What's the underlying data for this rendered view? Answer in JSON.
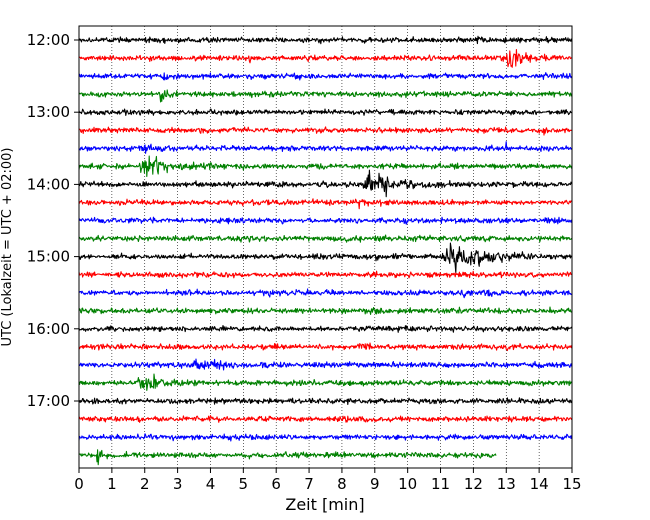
{
  "chart_data": {
    "type": "line",
    "subtype": "helicorder",
    "title": "",
    "xlabel": "Zeit  [min]",
    "ylabel": "UTC (Lokalzeit = UTC + 02:00)",
    "xlim": [
      0,
      15
    ],
    "x_ticks": [
      "0",
      "1",
      "2",
      "3",
      "4",
      "5",
      "6",
      "7",
      "8",
      "9",
      "10",
      "11",
      "12",
      "13",
      "14",
      "15"
    ],
    "y_ticks": [
      "12:00",
      "13:00",
      "14:00",
      "15:00",
      "16:00",
      "17:00"
    ],
    "grid": "vertical dotted",
    "trace_interval_min": 15,
    "trace_colors": [
      "#000000",
      "#ff0000",
      "#0000ff",
      "#008000"
    ],
    "rows": [
      {
        "start": "12:00",
        "color": "#000000",
        "end_min": 15,
        "events": [
          {
            "t": 12.1,
            "amp": 0.5,
            "dur": 0.15
          },
          {
            "t": 12.9,
            "amp": 0.45,
            "dur": 0.2
          }
        ]
      },
      {
        "start": "12:15",
        "color": "#ff0000",
        "end_min": 15,
        "events": [
          {
            "t": 5.2,
            "amp": 0.8,
            "dur": 0.1
          },
          {
            "t": 13.1,
            "amp": 2.0,
            "dur": 0.9
          }
        ]
      },
      {
        "start": "12:30",
        "color": "#0000ff",
        "end_min": 15,
        "events": [
          {
            "t": 2.5,
            "amp": 0.7,
            "dur": 0.2
          }
        ]
      },
      {
        "start": "12:45",
        "color": "#008000",
        "end_min": 15,
        "events": [
          {
            "t": 2.5,
            "amp": 0.9,
            "dur": 0.3
          }
        ]
      },
      {
        "start": "13:00",
        "color": "#000000",
        "end_min": 15,
        "events": [
          {
            "t": 4.6,
            "amp": 0.4,
            "dur": 0.3
          }
        ]
      },
      {
        "start": "13:15",
        "color": "#ff0000",
        "end_min": 15,
        "events": [
          {
            "t": 7.5,
            "amp": 0.3,
            "dur": 0.5
          },
          {
            "t": 12.6,
            "amp": 0.4,
            "dur": 0.8
          },
          {
            "t": 14.1,
            "amp": 0.5,
            "dur": 0.1
          }
        ]
      },
      {
        "start": "13:30",
        "color": "#0000ff",
        "end_min": 15,
        "events": [
          {
            "t": 2.0,
            "amp": 1.2,
            "dur": 0.3
          },
          {
            "t": 13.0,
            "amp": 0.6,
            "dur": 0.1
          },
          {
            "t": 14.0,
            "amp": 0.5,
            "dur": 0.1
          }
        ]
      },
      {
        "start": "13:45",
        "color": "#008000",
        "end_min": 15,
        "events": [
          {
            "t": 2.1,
            "amp": 2.0,
            "dur": 1.2
          },
          {
            "t": 4.0,
            "amp": 0.5,
            "dur": 0.3
          }
        ]
      },
      {
        "start": "14:00",
        "color": "#000000",
        "end_min": 15,
        "events": [
          {
            "t": 6.9,
            "amp": 0.4,
            "dur": 0.1
          },
          {
            "t": 8.9,
            "amp": 2.2,
            "dur": 1.6
          },
          {
            "t": 13.5,
            "amp": 0.4,
            "dur": 0.1
          }
        ]
      },
      {
        "start": "14:15",
        "color": "#ff0000",
        "end_min": 15,
        "events": [
          {
            "t": 8.5,
            "amp": 0.5,
            "dur": 0.3
          },
          {
            "t": 10.3,
            "amp": 0.3,
            "dur": 0.1
          }
        ]
      },
      {
        "start": "14:30",
        "color": "#0000ff",
        "end_min": 15,
        "events": [
          {
            "t": 1.5,
            "amp": 0.3,
            "dur": 0.1
          },
          {
            "t": 8.9,
            "amp": 0.6,
            "dur": 0.2
          },
          {
            "t": 11.7,
            "amp": 0.8,
            "dur": 0.2
          }
        ]
      },
      {
        "start": "14:45",
        "color": "#008000",
        "end_min": 15,
        "events": [
          {
            "t": 4.1,
            "amp": 0.3,
            "dur": 0.1
          },
          {
            "t": 11.6,
            "amp": 0.5,
            "dur": 0.2
          }
        ]
      },
      {
        "start": "15:00",
        "color": "#000000",
        "end_min": 15,
        "events": [
          {
            "t": 9.0,
            "amp": 0.6,
            "dur": 0.2
          },
          {
            "t": 11.5,
            "amp": 2.3,
            "dur": 2.0
          },
          {
            "t": 14.2,
            "amp": 0.3,
            "dur": 0.1
          }
        ]
      },
      {
        "start": "15:15",
        "color": "#ff0000",
        "end_min": 15,
        "events": [
          {
            "t": 11.6,
            "amp": 0.6,
            "dur": 0.2
          }
        ]
      },
      {
        "start": "15:30",
        "color": "#0000ff",
        "end_min": 15,
        "events": [
          {
            "t": 5.8,
            "amp": 0.4,
            "dur": 0.3
          },
          {
            "t": 11.7,
            "amp": 0.8,
            "dur": 0.2
          },
          {
            "t": 12.5,
            "amp": 0.3,
            "dur": 0.1
          }
        ]
      },
      {
        "start": "15:45",
        "color": "#008000",
        "end_min": 15,
        "events": [
          {
            "t": 8.9,
            "amp": 0.8,
            "dur": 0.3
          }
        ]
      },
      {
        "start": "16:00",
        "color": "#000000",
        "end_min": 15,
        "events": []
      },
      {
        "start": "16:15",
        "color": "#ff0000",
        "end_min": 15,
        "events": [
          {
            "t": 8.5,
            "amp": 0.5,
            "dur": 0.6
          },
          {
            "t": 13.0,
            "amp": 0.4,
            "dur": 0.1
          }
        ]
      },
      {
        "start": "16:30",
        "color": "#0000ff",
        "end_min": 15,
        "events": [
          {
            "t": 3.7,
            "amp": 0.7,
            "dur": 1.6
          },
          {
            "t": 5.5,
            "amp": 0.3,
            "dur": 0.1
          },
          {
            "t": 8.2,
            "amp": 0.3,
            "dur": 0.1
          }
        ]
      },
      {
        "start": "16:45",
        "color": "#008000",
        "end_min": 15,
        "events": [
          {
            "t": 2.0,
            "amp": 1.8,
            "dur": 1.3
          },
          {
            "t": 9.9,
            "amp": 0.3,
            "dur": 0.1
          }
        ]
      },
      {
        "start": "17:00",
        "color": "#000000",
        "end_min": 15,
        "events": []
      },
      {
        "start": "17:15",
        "color": "#ff0000",
        "end_min": 15,
        "events": [
          {
            "t": 4.0,
            "amp": 0.4,
            "dur": 0.1
          }
        ]
      },
      {
        "start": "17:30",
        "color": "#0000ff",
        "end_min": 15,
        "events": [
          {
            "t": 4.6,
            "amp": 0.3,
            "dur": 0.1
          }
        ]
      },
      {
        "start": "17:45",
        "color": "#008000",
        "end_min": 12.7,
        "events": [
          {
            "t": 0.55,
            "amp": 1.3,
            "dur": 0.25
          }
        ]
      }
    ]
  }
}
